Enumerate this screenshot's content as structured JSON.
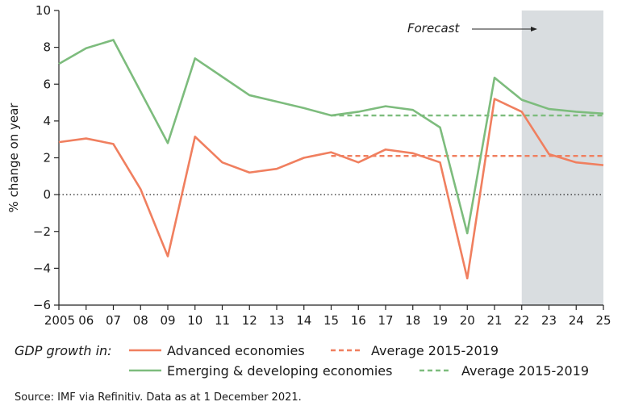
{
  "chart_data": {
    "type": "line",
    "x": [
      "2005",
      "06",
      "07",
      "08",
      "09",
      "10",
      "11",
      "12",
      "13",
      "14",
      "15",
      "16",
      "17",
      "18",
      "19",
      "20",
      "21",
      "22",
      "23",
      "24",
      "25"
    ],
    "ylabel": "% change on year",
    "ylim": [
      -6,
      10
    ],
    "yticks": [
      10,
      8,
      6,
      4,
      2,
      0,
      -2,
      -4,
      -6
    ],
    "series": [
      {
        "name": "Advanced economies",
        "color": "#f07f5f",
        "values": [
          2.85,
          3.05,
          2.75,
          0.3,
          -3.35,
          3.15,
          1.75,
          1.2,
          1.4,
          2.0,
          2.3,
          1.75,
          2.45,
          2.25,
          1.75,
          -4.55,
          5.2,
          4.5,
          2.2,
          1.75,
          1.6
        ]
      },
      {
        "name": "Emerging & developing economies",
        "color": "#7dbc7d",
        "values": [
          7.1,
          7.95,
          8.4,
          5.6,
          2.8,
          7.4,
          6.4,
          5.4,
          5.05,
          4.7,
          4.3,
          4.5,
          4.8,
          4.6,
          3.65,
          -2.1,
          6.35,
          5.15,
          4.65,
          4.5,
          4.4
        ]
      }
    ],
    "averages": [
      {
        "name": "Average 2015-2019",
        "series": "Advanced economies",
        "color": "#f07f5f",
        "value": 2.1,
        "from": "15",
        "to": "25"
      },
      {
        "name": "Average 2015-2019",
        "series": "Emerging & developing economies",
        "color": "#7dbc7d",
        "value": 4.3,
        "from": "15",
        "to": "25"
      }
    ],
    "forecast": {
      "label": "Forecast",
      "from": "22",
      "to": "25",
      "shade_color": "#d9dde0"
    },
    "zero_line": "dotted",
    "legend": {
      "title": "GDP growth in:",
      "position": "bottom",
      "entries": [
        {
          "label": "Advanced economies",
          "style": "solid",
          "color": "#f07f5f"
        },
        {
          "label": "Average 2015-2019",
          "style": "dashed",
          "color": "#f07f5f"
        },
        {
          "label": "Emerging & developing economies",
          "style": "solid",
          "color": "#7dbc7d"
        },
        {
          "label": "Average 2015-2019",
          "style": "dashed",
          "color": "#7dbc7d"
        }
      ]
    },
    "source": "Source: IMF via Refinitiv. Data as at 1 December 2021."
  }
}
